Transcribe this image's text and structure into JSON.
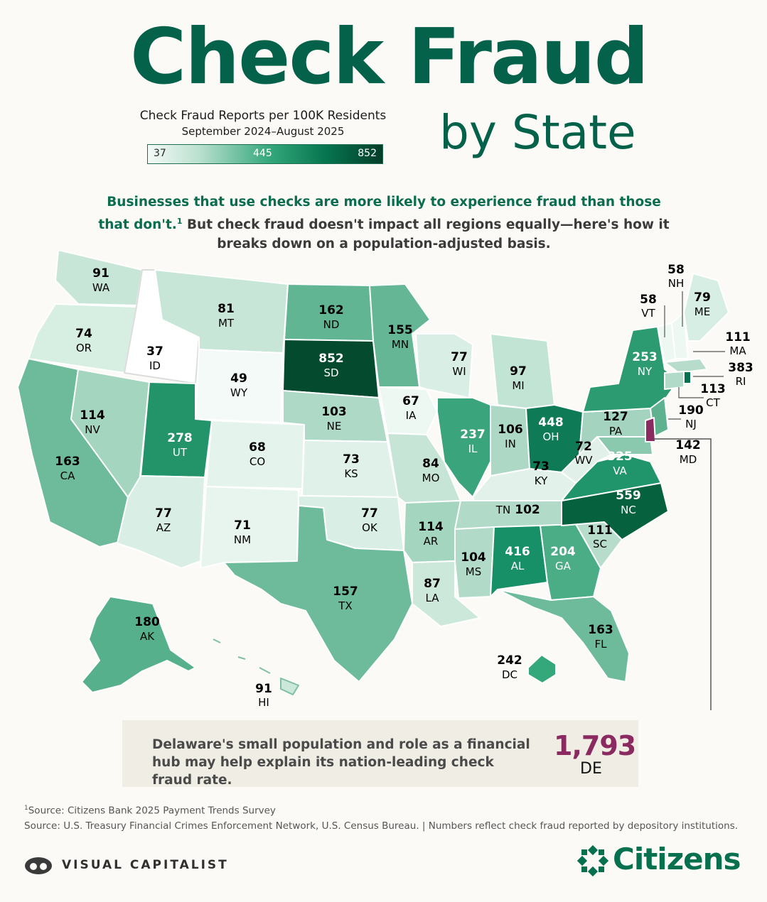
{
  "title": "Check Fraud",
  "subtitle": "by State",
  "legend": {
    "title": "Check Fraud Reports per 100K Residents",
    "range": "September 2024–August 2025",
    "min": "37",
    "mid": "445",
    "max": "852"
  },
  "intro": {
    "highlight": "Businesses that use checks are more likely to experience fraud than those that don't.",
    "footnote_mark": "1",
    "rest": " But check fraud doesn't impact all regions equally—here's how it breaks down on a population-adjusted basis."
  },
  "colors": {
    "scale_low": "#f4faf7",
    "scale_high": "#033d29",
    "delaware": "#8b2a60",
    "brand": "#05624a"
  },
  "states": {
    "WA": {
      "value": "91",
      "abbr": "WA"
    },
    "OR": {
      "value": "74",
      "abbr": "OR"
    },
    "CA": {
      "value": "163",
      "abbr": "CA"
    },
    "NV": {
      "value": "114",
      "abbr": "NV"
    },
    "ID": {
      "value": "37",
      "abbr": "ID"
    },
    "MT": {
      "value": "81",
      "abbr": "MT"
    },
    "WY": {
      "value": "49",
      "abbr": "WY"
    },
    "UT": {
      "value": "278",
      "abbr": "UT"
    },
    "AZ": {
      "value": "77",
      "abbr": "AZ"
    },
    "CO": {
      "value": "68",
      "abbr": "CO"
    },
    "NM": {
      "value": "71",
      "abbr": "NM"
    },
    "ND": {
      "value": "162",
      "abbr": "ND"
    },
    "SD": {
      "value": "852",
      "abbr": "SD"
    },
    "NE": {
      "value": "103",
      "abbr": "NE"
    },
    "KS": {
      "value": "73",
      "abbr": "KS"
    },
    "OK": {
      "value": "77",
      "abbr": "OK"
    },
    "TX": {
      "value": "157",
      "abbr": "TX"
    },
    "MN": {
      "value": "155",
      "abbr": "MN"
    },
    "IA": {
      "value": "67",
      "abbr": "IA"
    },
    "MO": {
      "value": "84",
      "abbr": "MO"
    },
    "AR": {
      "value": "114",
      "abbr": "AR"
    },
    "LA": {
      "value": "87",
      "abbr": "LA"
    },
    "WI": {
      "value": "77",
      "abbr": "WI"
    },
    "IL": {
      "value": "237",
      "abbr": "IL"
    },
    "MI": {
      "value": "97",
      "abbr": "MI"
    },
    "IN": {
      "value": "106",
      "abbr": "IN"
    },
    "OH": {
      "value": "448",
      "abbr": "OH"
    },
    "KY": {
      "value": "73",
      "abbr": "KY"
    },
    "TN": {
      "value": "102",
      "abbr": "TN"
    },
    "MS": {
      "value": "104",
      "abbr": "MS"
    },
    "AL": {
      "value": "416",
      "abbr": "AL"
    },
    "GA": {
      "value": "204",
      "abbr": "GA"
    },
    "FL": {
      "value": "163",
      "abbr": "FL"
    },
    "SC": {
      "value": "111",
      "abbr": "SC"
    },
    "NC": {
      "value": "559",
      "abbr": "NC"
    },
    "VA": {
      "value": "325",
      "abbr": "VA"
    },
    "WV": {
      "value": "72",
      "abbr": "WV"
    },
    "PA": {
      "value": "127",
      "abbr": "PA"
    },
    "NY": {
      "value": "253",
      "abbr": "NY"
    },
    "VT": {
      "value": "58",
      "abbr": "VT"
    },
    "NH": {
      "value": "58",
      "abbr": "NH"
    },
    "ME": {
      "value": "79",
      "abbr": "ME"
    },
    "MA": {
      "value": "111",
      "abbr": "MA"
    },
    "RI": {
      "value": "383",
      "abbr": "RI"
    },
    "CT": {
      "value": "113",
      "abbr": "CT"
    },
    "NJ": {
      "value": "190",
      "abbr": "NJ"
    },
    "MD": {
      "value": "142",
      "abbr": "MD"
    },
    "DC": {
      "value": "242",
      "abbr": "DC"
    },
    "AK": {
      "value": "180",
      "abbr": "AK"
    },
    "HI": {
      "value": "91",
      "abbr": "HI"
    }
  },
  "callout": {
    "text": "Delaware's small population and role as a financial hub may help explain its nation-leading check fraud rate.",
    "value": "1,793",
    "abbr": "DE"
  },
  "footnote": {
    "mark": "1",
    "text": "Source: Citizens Bank 2025 Payment Trends Survey"
  },
  "source": "Source: U.S. Treasury Financial Crimes Enforcement Network,  U.S. Census Bureau.  | Numbers reflect check fraud reported by depository institutions.",
  "brand_left": "VISUAL CAPITALIST",
  "brand_right": "Citizens"
}
